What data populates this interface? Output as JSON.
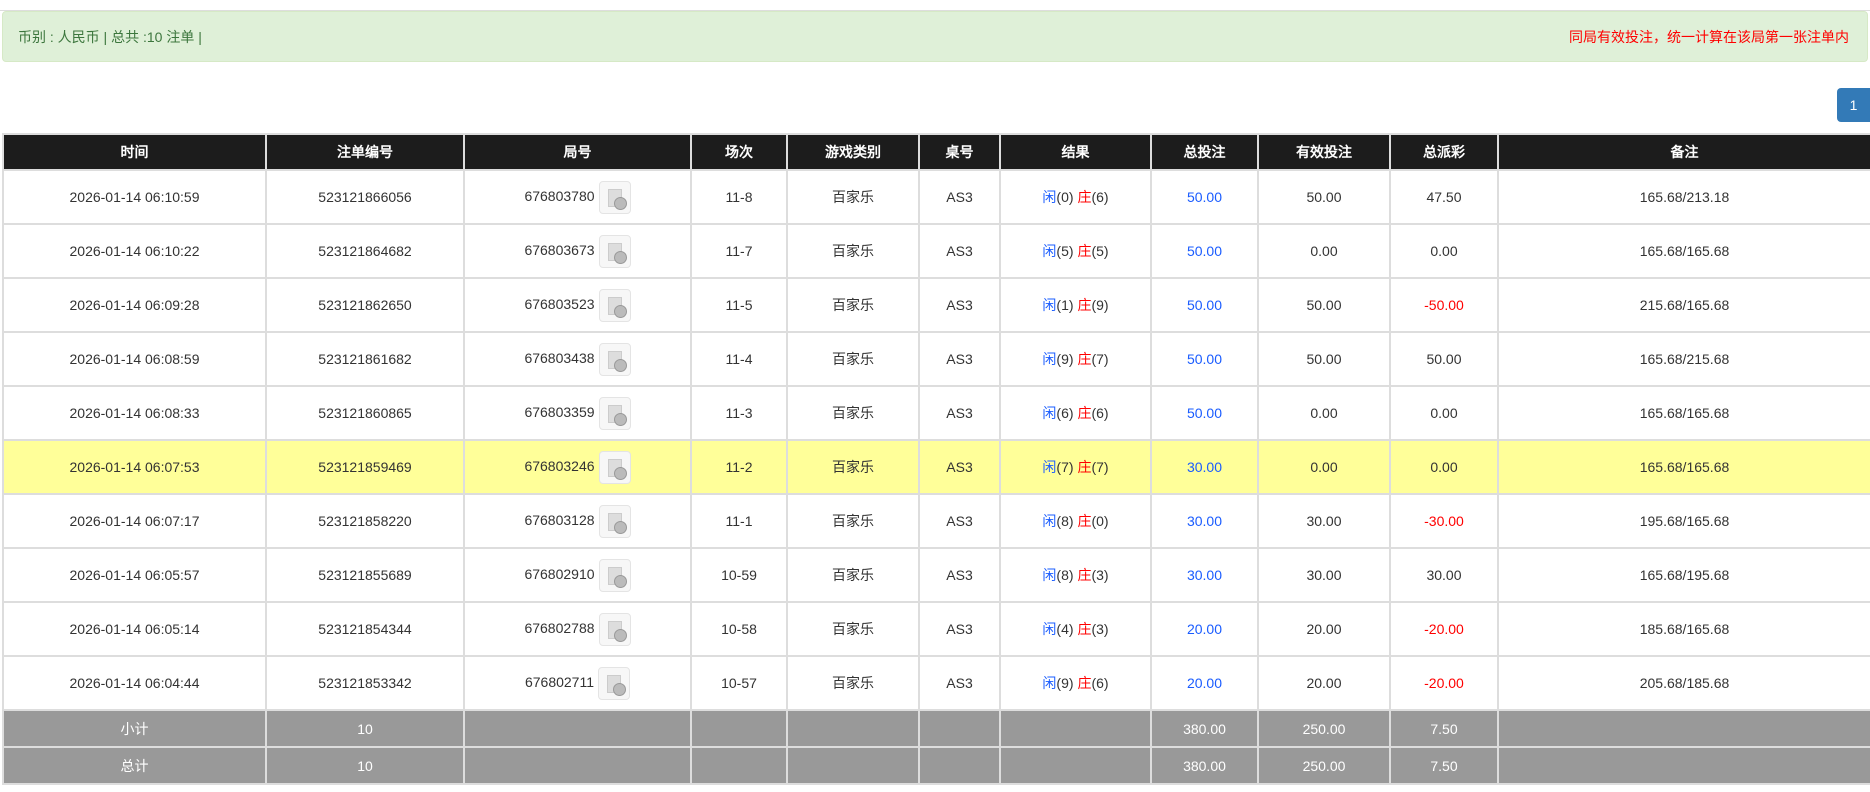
{
  "info": {
    "left": "币别 : 人民币 | 总共 :10 注单 |",
    "right": "同局有效投注，统一计算在该局第一张注单内"
  },
  "pagination": {
    "current": "1"
  },
  "colors": {
    "banker": "#ff0000",
    "player": "#1a5cff",
    "negative": "#ff0000",
    "bet": "#1a5cff",
    "highlight": "#ffff99"
  },
  "columns": [
    "时间",
    "注单编号",
    "局号",
    "场次",
    "游戏类别",
    "桌号",
    "结果",
    "总投注",
    "有效投注",
    "总派彩",
    "备注"
  ],
  "rows": [
    {
      "time": "2026-01-14 06:10:59",
      "id": "523121866056",
      "round": "676803780",
      "shoe": "11-8",
      "game": "百家乐",
      "table": "AS3",
      "p": "闲",
      "pv": "(0)",
      "b": "庄",
      "bv": "(6)",
      "bet": "50.00",
      "valid": "50.00",
      "payout": "47.50",
      "note": "165.68/213.18"
    },
    {
      "time": "2026-01-14 06:10:22",
      "id": "523121864682",
      "round": "676803673",
      "shoe": "11-7",
      "game": "百家乐",
      "table": "AS3",
      "p": "闲",
      "pv": "(5)",
      "b": "庄",
      "bv": "(5)",
      "bet": "50.00",
      "valid": "0.00",
      "payout": "0.00",
      "note": "165.68/165.68"
    },
    {
      "time": "2026-01-14 06:09:28",
      "id": "523121862650",
      "round": "676803523",
      "shoe": "11-5",
      "game": "百家乐",
      "table": "AS3",
      "p": "闲",
      "pv": "(1)",
      "b": "庄",
      "bv": "(9)",
      "bet": "50.00",
      "valid": "50.00",
      "payout": "-50.00",
      "note": "215.68/165.68"
    },
    {
      "time": "2026-01-14 06:08:59",
      "id": "523121861682",
      "round": "676803438",
      "shoe": "11-4",
      "game": "百家乐",
      "table": "AS3",
      "p": "闲",
      "pv": "(9)",
      "b": "庄",
      "bv": "(7)",
      "bet": "50.00",
      "valid": "50.00",
      "payout": "50.00",
      "note": "165.68/215.68"
    },
    {
      "time": "2026-01-14 06:08:33",
      "id": "523121860865",
      "round": "676803359",
      "shoe": "11-3",
      "game": "百家乐",
      "table": "AS3",
      "p": "闲",
      "pv": "(6)",
      "b": "庄",
      "bv": "(6)",
      "bet": "50.00",
      "valid": "0.00",
      "payout": "0.00",
      "note": "165.68/165.68"
    },
    {
      "time": "2026-01-14 06:07:53",
      "id": "523121859469",
      "round": "676803246",
      "shoe": "11-2",
      "game": "百家乐",
      "table": "AS3",
      "p": "闲",
      "pv": "(7)",
      "b": "庄",
      "bv": "(7)",
      "bet": "30.00",
      "valid": "0.00",
      "payout": "0.00",
      "note": "165.68/165.68",
      "highlighted": true
    },
    {
      "time": "2026-01-14 06:07:17",
      "id": "523121858220",
      "round": "676803128",
      "shoe": "11-1",
      "game": "百家乐",
      "table": "AS3",
      "p": "闲",
      "pv": "(8)",
      "b": "庄",
      "bv": "(0)",
      "bet": "30.00",
      "valid": "30.00",
      "payout": "-30.00",
      "note": "195.68/165.68"
    },
    {
      "time": "2026-01-14 06:05:57",
      "id": "523121855689",
      "round": "676802910",
      "shoe": "10-59",
      "game": "百家乐",
      "table": "AS3",
      "p": "闲",
      "pv": "(8)",
      "b": "庄",
      "bv": "(3)",
      "bet": "30.00",
      "valid": "30.00",
      "payout": "30.00",
      "note": "165.68/195.68"
    },
    {
      "time": "2026-01-14 06:05:14",
      "id": "523121854344",
      "round": "676802788",
      "shoe": "10-58",
      "game": "百家乐",
      "table": "AS3",
      "p": "闲",
      "pv": "(4)",
      "b": "庄",
      "bv": "(3)",
      "bet": "20.00",
      "valid": "20.00",
      "payout": "-20.00",
      "note": "185.68/165.68"
    },
    {
      "time": "2026-01-14 06:04:44",
      "id": "523121853342",
      "round": "676802711",
      "shoe": "10-57",
      "game": "百家乐",
      "table": "AS3",
      "p": "闲",
      "pv": "(9)",
      "b": "庄",
      "bv": "(6)",
      "bet": "20.00",
      "valid": "20.00",
      "payout": "-20.00",
      "note": "205.68/185.68"
    }
  ],
  "subtotal": {
    "label": "小计",
    "count": "10",
    "bet": "380.00",
    "valid": "250.00",
    "payout": "7.50"
  },
  "total": {
    "label": "总计",
    "count": "10",
    "bet": "380.00",
    "valid": "250.00",
    "payout": "7.50"
  }
}
